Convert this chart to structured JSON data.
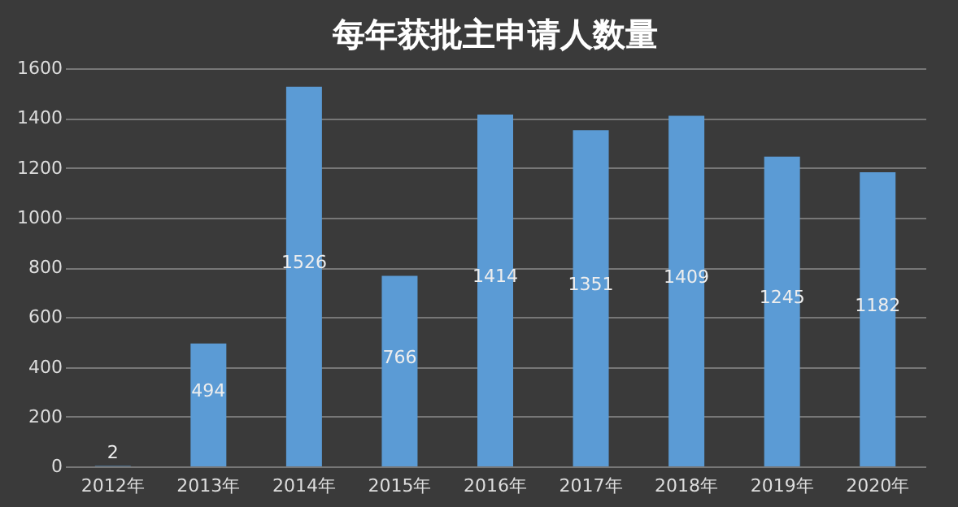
{
  "chart_data": {
    "type": "bar",
    "title": "每年获批主申请人数量",
    "categories": [
      "2012年",
      "2013年",
      "2014年",
      "2015年",
      "2016年",
      "2017年",
      "2018年",
      "2019年",
      "2020年"
    ],
    "values": [
      2,
      494,
      1526,
      766,
      1414,
      1351,
      1409,
      1245,
      1182
    ],
    "color": "#5b9bd5",
    "ylim": [
      0,
      1600
    ],
    "yticks": [
      0,
      200,
      400,
      600,
      800,
      1000,
      1200,
      1400,
      1600
    ],
    "grid": "y",
    "data_labels": true
  }
}
